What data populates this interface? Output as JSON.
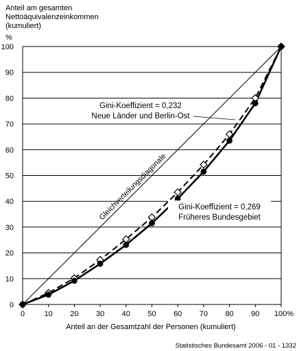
{
  "chart_data": {
    "type": "line",
    "ylabel_lines": [
      "Anteil am gesamten",
      "Nettoäquivalenzeinkommen",
      "(kumuliert)"
    ],
    "yunit": "%",
    "xlabel": "Anteil an der Gesamtzahl der Personen (kumuliert)",
    "xlim": [
      0,
      100
    ],
    "ylim": [
      0,
      100
    ],
    "x_ticks": [
      "0",
      "10",
      "20",
      "30",
      "40",
      "50",
      "60",
      "70",
      "80",
      "90",
      "100%"
    ],
    "y_ticks": [
      "0",
      "10",
      "20",
      "30",
      "40",
      "50",
      "60",
      "70",
      "80",
      "90",
      "100"
    ],
    "grid": "horizontal",
    "diagonal_label": "Gleichverteilungsdiagonale",
    "series": [
      {
        "name_lines": [
          "Gini-Koeffizient = 0,232",
          "Neue Länder und Berlin-Ost"
        ],
        "style": "dashed",
        "marker": "open-diamond",
        "x": [
          0,
          10,
          20,
          30,
          40,
          50,
          60,
          70,
          80,
          90,
          100
        ],
        "y": [
          0,
          4.5,
          10.2,
          17.3,
          25.3,
          33.8,
          43.5,
          54.2,
          66.0,
          80.0,
          100
        ]
      },
      {
        "name_lines": [
          "Gini-Koeffizient = 0,269",
          "Früheres Bundesgebiet"
        ],
        "style": "solid",
        "marker": "filled-circle",
        "x": [
          0,
          10,
          20,
          30,
          40,
          50,
          60,
          70,
          80,
          90,
          100
        ],
        "y": [
          0,
          3.8,
          9.2,
          15.8,
          23.1,
          31.5,
          41.0,
          51.5,
          63.5,
          78.0,
          100
        ]
      }
    ]
  },
  "source": "Statistisches Bundesamt 2006 - 01 - 1332"
}
